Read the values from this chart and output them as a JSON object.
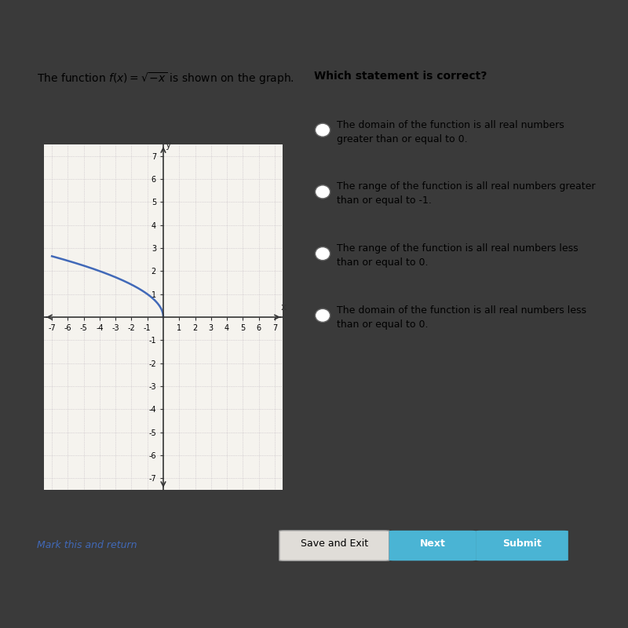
{
  "bg_outer": "#3a3a3a",
  "bg_panel": "#e8e6e0",
  "right_title": "Which statement is correct?",
  "options": [
    "The domain of the function is all real numbers\ngreater than or equal to 0.",
    "The range of the function is all real numbers greater\nthan or equal to -1.",
    "The range of the function is all real numbers less\nthan or equal to 0.",
    "The domain of the function is all real numbers less\nthan or equal to 0."
  ],
  "graph_xlim": [
    -7,
    7
  ],
  "graph_ylim": [
    -7,
    7
  ],
  "curve_color": "#4169b8",
  "curve_linewidth": 1.8,
  "grid_color": "#c0b8c0",
  "axis_color": "#333333",
  "tick_color": "#333333",
  "button_next_color": "#4ab4d4",
  "button_submit_color": "#4ab4d4",
  "mark_link_color": "#4169b8",
  "bottom_bar_color": "#d8d5cc"
}
